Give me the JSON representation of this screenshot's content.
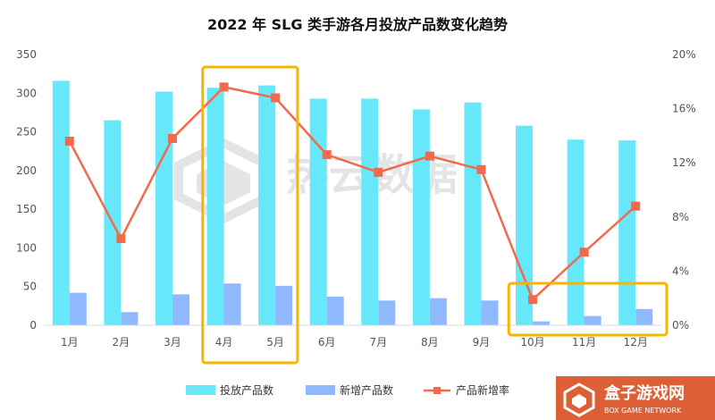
{
  "chart_data": {
    "type": "bar",
    "title": "2022 年 SLG 类手游各月投放产品数变化趋势",
    "categories": [
      "1月",
      "2月",
      "3月",
      "4月",
      "5月",
      "6月",
      "7月",
      "8月",
      "9月",
      "10月",
      "11月",
      "12月"
    ],
    "series": [
      {
        "name": "投放产品数",
        "type": "bar",
        "axis": "left",
        "color": "#66E8FA",
        "values": [
          316,
          265,
          302,
          307,
          310,
          293,
          293,
          279,
          288,
          258,
          240,
          239
        ]
      },
      {
        "name": "新增产品数",
        "type": "bar",
        "axis": "left",
        "color": "#8FB9FF",
        "values": [
          42,
          17,
          40,
          54,
          51,
          37,
          32,
          35,
          32,
          5,
          12,
          21
        ]
      },
      {
        "name": "产品新增率",
        "type": "line",
        "axis": "right",
        "color": "#F26A4B",
        "values": [
          13.6,
          6.4,
          13.8,
          17.6,
          16.8,
          12.6,
          11.3,
          12.5,
          11.5,
          1.9,
          5.4,
          8.8
        ]
      }
    ],
    "y_left": {
      "min": 0,
      "max": 350,
      "ticks": [
        0,
        50,
        100,
        150,
        200,
        250,
        300,
        350
      ]
    },
    "y_right": {
      "min": 0,
      "max": 20,
      "ticks": [
        "0%",
        "4%",
        "8%",
        "12%",
        "16%",
        "20%"
      ]
    },
    "grid": false,
    "legend_position": "bottom",
    "highlights": [
      {
        "categories": [
          "4月",
          "5月"
        ],
        "color": "#F7B500"
      },
      {
        "categories": [
          "10月",
          "11月",
          "12月"
        ],
        "color": "#F7B500"
      }
    ]
  },
  "watermark": {
    "text": "热云数据"
  },
  "logo": {
    "name": "盒子游戏网",
    "sub": "BOX GAME NETWORK",
    "icon": "box-logo-icon"
  }
}
